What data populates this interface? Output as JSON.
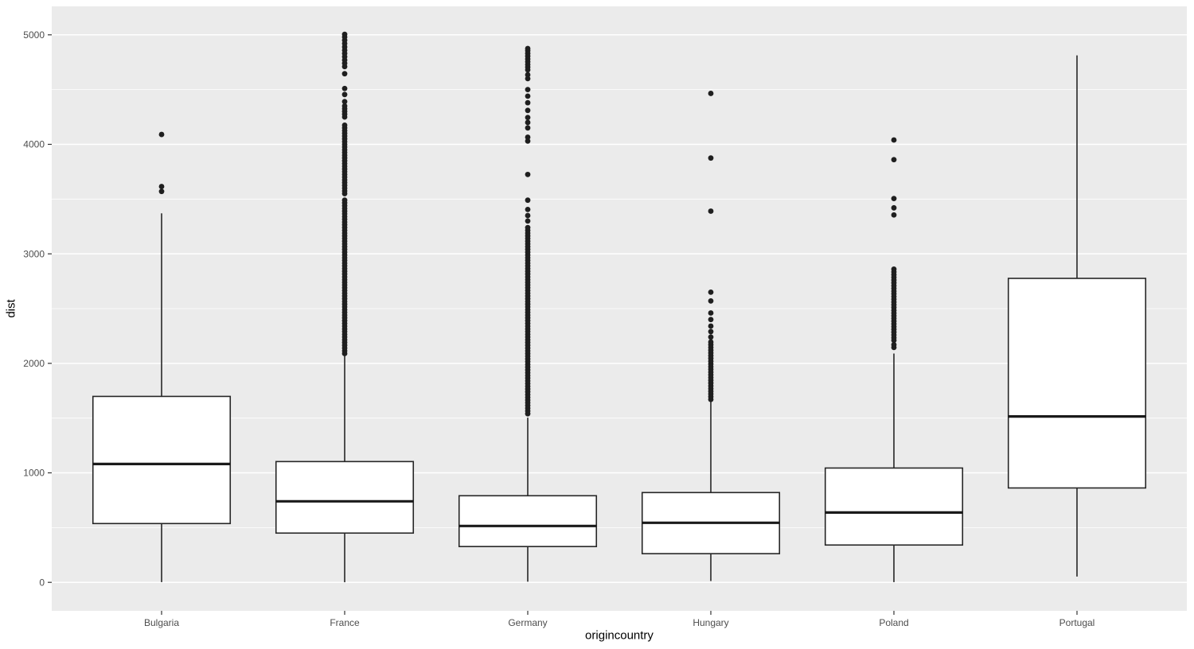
{
  "chart_data": {
    "type": "boxplot",
    "xlabel": "origincountry",
    "ylabel": "dist",
    "categories": [
      "Bulgaria",
      "France",
      "Germany",
      "Hungary",
      "Poland",
      "Portugal"
    ],
    "y_ticks": [
      0,
      1000,
      2000,
      3000,
      4000,
      5000
    ],
    "y_tick_labels": [
      "0",
      "1000",
      "2000",
      "3000",
      "4000",
      "5000"
    ],
    "y_minor_ticks": [
      500,
      1500,
      2500,
      3500,
      4500
    ],
    "ylim": [
      -260,
      5260
    ],
    "xlim": [
      0.4,
      6.6
    ],
    "box_width": 0.75,
    "grid": true,
    "legend": "none",
    "colors": {
      "panel_bg": "#EBEBEB",
      "grid": "#FFFFFF",
      "box_stroke": "#262626",
      "box_fill": "#FFFFFF",
      "median": "#1A1A1A",
      "outlier": "#1F1F1F",
      "tick_mark": "#333333",
      "tick_label": "#4D4D4D",
      "axis_title": "#000000"
    },
    "series": [
      {
        "category": "Bulgaria",
        "whisker_low": 2,
        "q1": 537,
        "median": 1081,
        "q3": 1698,
        "whisker_high": 3370,
        "outliers": [
          3570,
          3615,
          4090
        ]
      },
      {
        "category": "France",
        "whisker_low": 1,
        "q1": 450,
        "median": 740,
        "q3": 1103,
        "whisker_high": 2082,
        "outliers": [
          2090,
          2115,
          2140,
          2165,
          2190,
          2215,
          2240,
          2265,
          2290,
          2315,
          2340,
          2365,
          2390,
          2415,
          2440,
          2465,
          2490,
          2515,
          2540,
          2565,
          2590,
          2615,
          2640,
          2665,
          2690,
          2715,
          2740,
          2765,
          2790,
          2815,
          2840,
          2865,
          2890,
          2915,
          2940,
          2965,
          2990,
          3015,
          3040,
          3065,
          3090,
          3115,
          3140,
          3165,
          3190,
          3215,
          3240,
          3265,
          3290,
          3315,
          3340,
          3365,
          3390,
          3415,
          3440,
          3465,
          3490,
          3550,
          3575,
          3600,
          3625,
          3650,
          3675,
          3700,
          3725,
          3750,
          3775,
          3800,
          3825,
          3850,
          3875,
          3900,
          3925,
          3950,
          3975,
          4000,
          4025,
          4050,
          4075,
          4100,
          4125,
          4150,
          4175,
          4250,
          4275,
          4300,
          4325,
          4350,
          4390,
          4455,
          4510,
          4645,
          4710,
          4740,
          4770,
          4800,
          4830,
          4860,
          4890,
          4920,
          4950,
          4980,
          5005
        ]
      },
      {
        "category": "Germany",
        "whisker_low": 6,
        "q1": 327,
        "median": 515,
        "q3": 791,
        "whisker_high": 1504,
        "outliers": [
          1540,
          1565,
          1590,
          1615,
          1640,
          1665,
          1690,
          1715,
          1740,
          1765,
          1790,
          1815,
          1840,
          1865,
          1890,
          1915,
          1940,
          1965,
          1990,
          2015,
          2040,
          2065,
          2090,
          2115,
          2140,
          2165,
          2190,
          2215,
          2240,
          2265,
          2290,
          2315,
          2340,
          2365,
          2390,
          2415,
          2440,
          2465,
          2490,
          2515,
          2540,
          2565,
          2590,
          2615,
          2640,
          2665,
          2690,
          2715,
          2740,
          2765,
          2790,
          2815,
          2840,
          2865,
          2890,
          2915,
          2940,
          2965,
          2990,
          3015,
          3040,
          3065,
          3090,
          3115,
          3140,
          3165,
          3190,
          3215,
          3240,
          3300,
          3350,
          3405,
          3490,
          3725,
          4030,
          4065,
          4150,
          4200,
          4245,
          4310,
          4380,
          4440,
          4500,
          4600,
          4635,
          4680,
          4705,
          4730,
          4755,
          4780,
          4805,
          4830,
          4855,
          4875
        ]
      },
      {
        "category": "Hungary",
        "whisker_low": 12,
        "q1": 262,
        "median": 544,
        "q3": 820,
        "whisker_high": 1648,
        "outliers": [
          1670,
          1695,
          1720,
          1745,
          1770,
          1795,
          1820,
          1845,
          1870,
          1895,
          1920,
          1945,
          1970,
          1995,
          2020,
          2045,
          2070,
          2095,
          2120,
          2145,
          2170,
          2195,
          2240,
          2290,
          2340,
          2400,
          2460,
          2570,
          2650,
          3390,
          3875,
          4465
        ]
      },
      {
        "category": "Poland",
        "whisker_low": 2,
        "q1": 341,
        "median": 638,
        "q3": 1044,
        "whisker_high": 2090,
        "outliers": [
          2145,
          2170,
          2210,
          2235,
          2260,
          2285,
          2310,
          2335,
          2360,
          2385,
          2410,
          2435,
          2460,
          2485,
          2510,
          2535,
          2560,
          2585,
          2610,
          2635,
          2660,
          2685,
          2710,
          2735,
          2760,
          2785,
          2810,
          2835,
          2860,
          3355,
          3420,
          3505,
          3860,
          4040
        ]
      },
      {
        "category": "Portugal",
        "whisker_low": 53,
        "q1": 862,
        "median": 1515,
        "q3": 2776,
        "whisker_high": 4812,
        "outliers": []
      }
    ]
  }
}
